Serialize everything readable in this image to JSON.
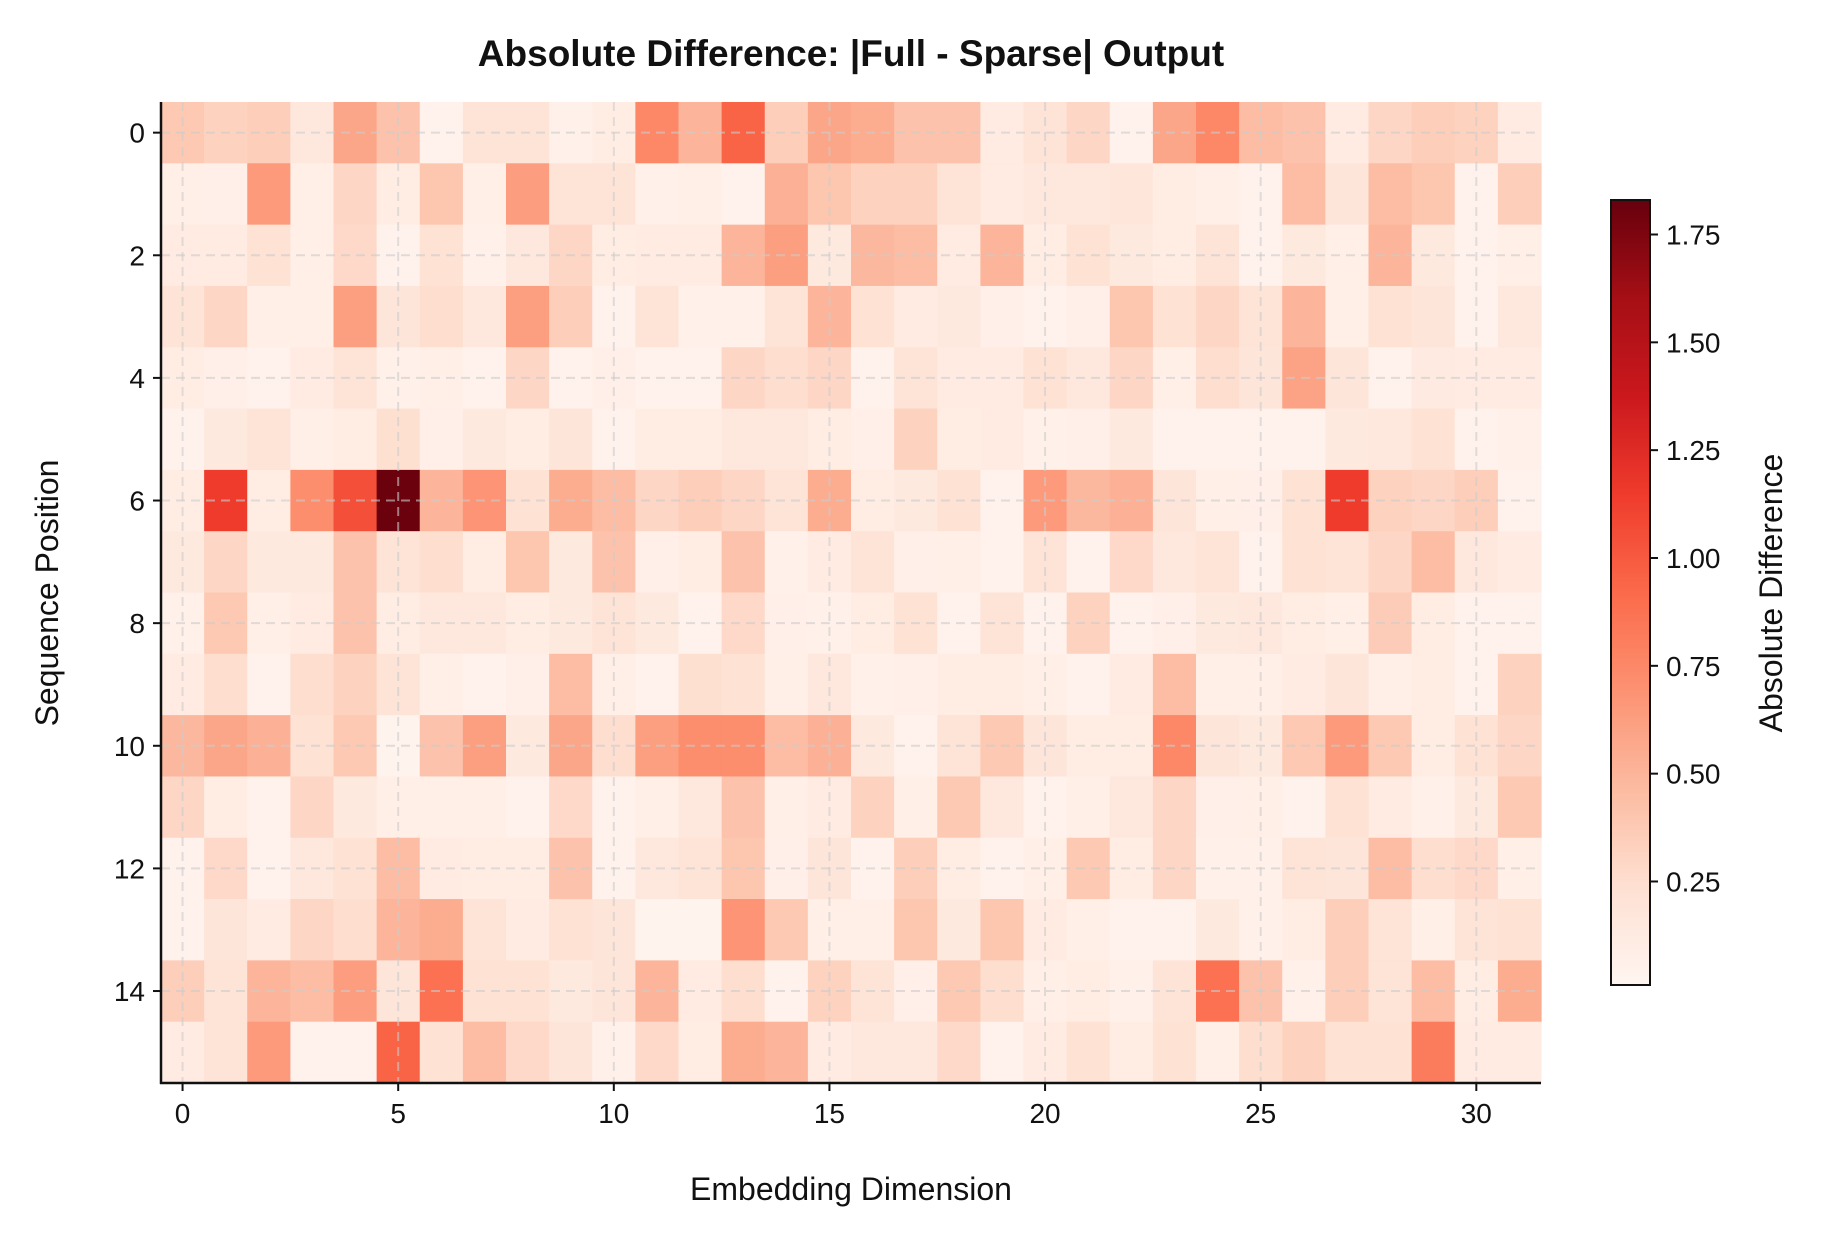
{
  "chart_data": {
    "type": "heatmap",
    "title": "Absolute Difference: |Full - Sparse| Output",
    "xlabel": "Embedding Dimension",
    "ylabel": "Sequence Position",
    "colormap": "Reds",
    "vmin": 0.01,
    "vmax": 1.83,
    "grid": true,
    "x_ticks": [
      0,
      5,
      10,
      15,
      20,
      25,
      30
    ],
    "y_ticks": [
      0,
      2,
      4,
      6,
      8,
      10,
      12,
      14
    ],
    "colorbar": {
      "label": "Absolute Difference",
      "ticks": [
        "0.25",
        "0.50",
        "0.75",
        "1.00",
        "1.25",
        "1.50",
        "1.75"
      ],
      "tick_values": [
        0.25,
        0.5,
        0.75,
        1.0,
        1.25,
        1.5,
        1.75
      ],
      "position": "right"
    },
    "n_rows": 16,
    "n_cols": 32,
    "values": [
      [
        0.38,
        0.32,
        0.35,
        0.15,
        0.58,
        0.42,
        0.04,
        0.2,
        0.2,
        0.06,
        0.1,
        0.75,
        0.5,
        0.95,
        0.35,
        0.58,
        0.55,
        0.42,
        0.42,
        0.12,
        0.2,
        0.3,
        0.04,
        0.58,
        0.75,
        0.45,
        0.42,
        0.12,
        0.3,
        0.35,
        0.32,
        0.12
      ],
      [
        0.08,
        0.07,
        0.65,
        0.08,
        0.3,
        0.1,
        0.4,
        0.08,
        0.63,
        0.2,
        0.2,
        0.06,
        0.08,
        0.04,
        0.52,
        0.4,
        0.32,
        0.32,
        0.2,
        0.12,
        0.15,
        0.15,
        0.17,
        0.1,
        0.08,
        0.05,
        0.45,
        0.18,
        0.45,
        0.4,
        0.04,
        0.35
      ],
      [
        0.12,
        0.12,
        0.22,
        0.08,
        0.28,
        0.04,
        0.22,
        0.06,
        0.16,
        0.3,
        0.1,
        0.12,
        0.12,
        0.5,
        0.62,
        0.14,
        0.48,
        0.45,
        0.12,
        0.5,
        0.1,
        0.22,
        0.14,
        0.1,
        0.2,
        0.04,
        0.14,
        0.08,
        0.5,
        0.14,
        0.05,
        0.08
      ],
      [
        0.2,
        0.3,
        0.08,
        0.08,
        0.62,
        0.18,
        0.25,
        0.15,
        0.62,
        0.35,
        0.05,
        0.2,
        0.06,
        0.06,
        0.2,
        0.5,
        0.22,
        0.12,
        0.14,
        0.07,
        0.04,
        0.07,
        0.4,
        0.22,
        0.3,
        0.2,
        0.5,
        0.08,
        0.22,
        0.18,
        0.05,
        0.16
      ],
      [
        0.1,
        0.07,
        0.05,
        0.12,
        0.2,
        0.06,
        0.08,
        0.04,
        0.3,
        0.05,
        0.07,
        0.05,
        0.05,
        0.3,
        0.25,
        0.3,
        0.05,
        0.2,
        0.12,
        0.12,
        0.22,
        0.16,
        0.3,
        0.08,
        0.25,
        0.18,
        0.6,
        0.18,
        0.05,
        0.13,
        0.12,
        0.12
      ],
      [
        0.04,
        0.14,
        0.2,
        0.08,
        0.1,
        0.24,
        0.07,
        0.14,
        0.1,
        0.18,
        0.05,
        0.1,
        0.1,
        0.16,
        0.16,
        0.1,
        0.07,
        0.32,
        0.1,
        0.12,
        0.06,
        0.07,
        0.14,
        0.04,
        0.04,
        0.04,
        0.04,
        0.14,
        0.15,
        0.22,
        0.05,
        0.06
      ],
      [
        0.1,
        1.15,
        0.1,
        0.72,
        1.05,
        1.82,
        0.5,
        0.68,
        0.22,
        0.55,
        0.45,
        0.3,
        0.35,
        0.3,
        0.2,
        0.55,
        0.1,
        0.14,
        0.22,
        0.04,
        0.65,
        0.48,
        0.52,
        0.18,
        0.08,
        0.07,
        0.22,
        1.15,
        0.32,
        0.3,
        0.35,
        0.05
      ],
      [
        0.14,
        0.3,
        0.14,
        0.14,
        0.42,
        0.2,
        0.25,
        0.1,
        0.4,
        0.14,
        0.42,
        0.07,
        0.1,
        0.42,
        0.06,
        0.12,
        0.2,
        0.07,
        0.08,
        0.05,
        0.2,
        0.04,
        0.28,
        0.16,
        0.2,
        0.05,
        0.22,
        0.2,
        0.3,
        0.45,
        0.16,
        0.12
      ],
      [
        0.06,
        0.38,
        0.08,
        0.12,
        0.42,
        0.1,
        0.15,
        0.15,
        0.1,
        0.14,
        0.2,
        0.14,
        0.04,
        0.28,
        0.07,
        0.06,
        0.1,
        0.22,
        0.05,
        0.2,
        0.04,
        0.32,
        0.05,
        0.07,
        0.14,
        0.16,
        0.1,
        0.08,
        0.36,
        0.1,
        0.05,
        0.05
      ],
      [
        0.12,
        0.25,
        0.05,
        0.25,
        0.32,
        0.2,
        0.08,
        0.04,
        0.07,
        0.45,
        0.08,
        0.05,
        0.24,
        0.22,
        0.08,
        0.16,
        0.06,
        0.07,
        0.1,
        0.1,
        0.08,
        0.04,
        0.12,
        0.45,
        0.08,
        0.08,
        0.12,
        0.18,
        0.08,
        0.1,
        0.04,
        0.32
      ],
      [
        0.48,
        0.58,
        0.52,
        0.22,
        0.38,
        0.03,
        0.42,
        0.62,
        0.14,
        0.58,
        0.25,
        0.62,
        0.72,
        0.72,
        0.45,
        0.52,
        0.14,
        0.04,
        0.2,
        0.38,
        0.18,
        0.1,
        0.1,
        0.75,
        0.18,
        0.14,
        0.38,
        0.65,
        0.38,
        0.1,
        0.22,
        0.3
      ],
      [
        0.3,
        0.1,
        0.04,
        0.3,
        0.14,
        0.08,
        0.08,
        0.08,
        0.04,
        0.28,
        0.05,
        0.08,
        0.15,
        0.42,
        0.08,
        0.12,
        0.32,
        0.08,
        0.38,
        0.15,
        0.04,
        0.08,
        0.15,
        0.3,
        0.07,
        0.08,
        0.05,
        0.22,
        0.12,
        0.06,
        0.14,
        0.38
      ],
      [
        0.05,
        0.28,
        0.04,
        0.16,
        0.22,
        0.45,
        0.12,
        0.1,
        0.1,
        0.42,
        0.04,
        0.15,
        0.2,
        0.4,
        0.07,
        0.18,
        0.04,
        0.35,
        0.1,
        0.05,
        0.08,
        0.38,
        0.1,
        0.3,
        0.06,
        0.06,
        0.2,
        0.18,
        0.45,
        0.25,
        0.28,
        0.08
      ],
      [
        0.05,
        0.18,
        0.12,
        0.3,
        0.25,
        0.5,
        0.55,
        0.2,
        0.12,
        0.22,
        0.18,
        0.03,
        0.03,
        0.68,
        0.38,
        0.08,
        0.08,
        0.4,
        0.14,
        0.4,
        0.12,
        0.08,
        0.04,
        0.05,
        0.14,
        0.06,
        0.1,
        0.35,
        0.2,
        0.08,
        0.2,
        0.22
      ],
      [
        0.35,
        0.2,
        0.5,
        0.45,
        0.63,
        0.18,
        0.88,
        0.22,
        0.22,
        0.14,
        0.18,
        0.5,
        0.12,
        0.25,
        0.04,
        0.32,
        0.2,
        0.07,
        0.38,
        0.25,
        0.08,
        0.1,
        0.06,
        0.2,
        0.88,
        0.42,
        0.06,
        0.35,
        0.2,
        0.45,
        0.1,
        0.55
      ],
      [
        0.12,
        0.2,
        0.65,
        0.04,
        0.04,
        0.95,
        0.22,
        0.45,
        0.28,
        0.18,
        0.06,
        0.28,
        0.1,
        0.55,
        0.5,
        0.12,
        0.15,
        0.15,
        0.28,
        0.05,
        0.12,
        0.22,
        0.1,
        0.22,
        0.08,
        0.25,
        0.32,
        0.22,
        0.22,
        0.82,
        0.12,
        0.12
      ]
    ]
  },
  "colors": {
    "axis": "#111111",
    "grid": "#cccccc"
  }
}
